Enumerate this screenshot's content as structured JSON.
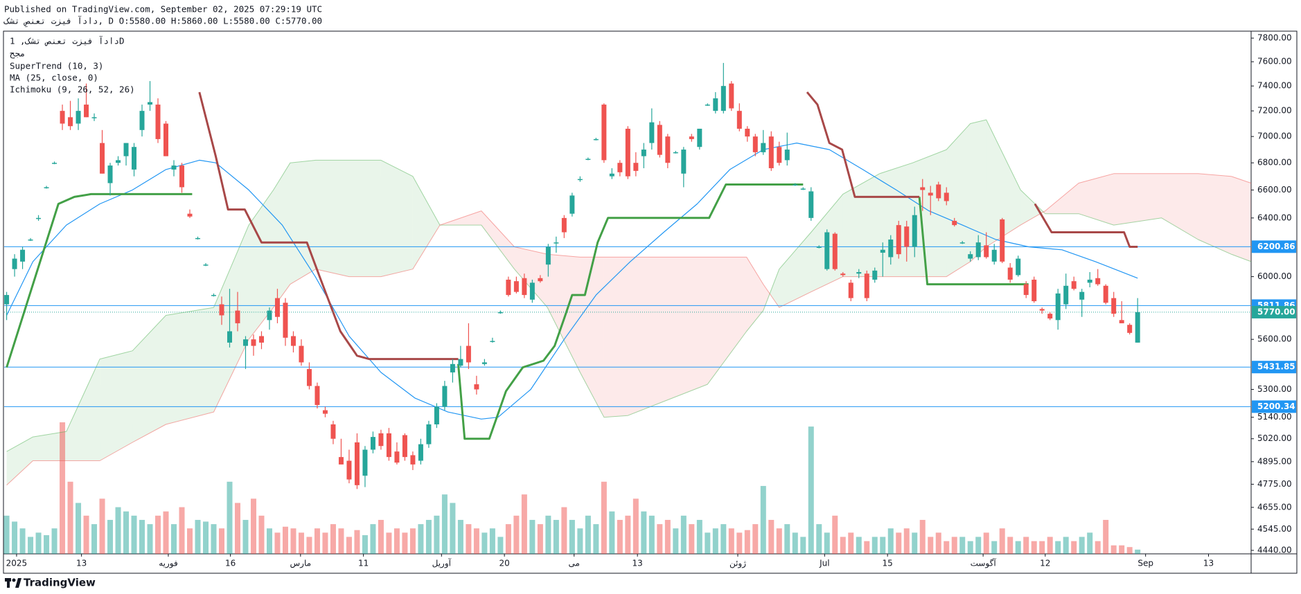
{
  "chart_data": {
    "type": "candlestick",
    "published": "Published on TradingView.com, September 02, 2025 07:29:19 UTC",
    "symbol_info": "دادآ فیزت تعنصِ تشک, D O:5580.00 H:5860.00 L:5580.00 C:5770.00",
    "legend": [
      "دادآ فیزت تعنص تشک, 1D",
      "مجح",
      "SuperTrend (10, 3)",
      "MA (25, close, 0)",
      "Ichimoku (9, 26, 52, 26)"
    ],
    "footer_logo": "TradingView",
    "log_scale": true,
    "ylim": [
      4423,
      7860
    ],
    "yticks": [
      {
        "value": 7800,
        "label": "7800.00"
      },
      {
        "value": 7600,
        "label": "7600.00"
      },
      {
        "value": 7400,
        "label": "7400.00"
      },
      {
        "value": 7200,
        "label": "7200.00"
      },
      {
        "value": 7000,
        "label": "7000.00"
      },
      {
        "value": 6800,
        "label": "6800.00"
      },
      {
        "value": 6600,
        "label": "6600.00"
      },
      {
        "value": 6400,
        "label": "6400.00"
      },
      {
        "value": 6000,
        "label": "6000.00"
      },
      {
        "value": 5600,
        "label": "5600.00"
      },
      {
        "value": 5300,
        "label": "5300.00"
      },
      {
        "value": 5140,
        "label": "5140.00"
      },
      {
        "value": 5020,
        "label": "5020.00"
      },
      {
        "value": 4895,
        "label": "4895.00"
      },
      {
        "value": 4775,
        "label": "4775.00"
      },
      {
        "value": 4655,
        "label": "4655.00"
      },
      {
        "value": 4545,
        "label": "4545.00"
      },
      {
        "value": 4440,
        "label": "4440.00"
      }
    ],
    "xlim": [
      -0.31,
      156.25
    ],
    "xticks": [
      {
        "value": 1.25,
        "label": "2025"
      },
      {
        "value": 9.4,
        "label": "13"
      },
      {
        "value": 20.3,
        "label": "فوریه"
      },
      {
        "value": 28.1,
        "label": "16"
      },
      {
        "value": 36.9,
        "label": "مارس"
      },
      {
        "value": 44.8,
        "label": "11"
      },
      {
        "value": 54.6,
        "label": "آوریل"
      },
      {
        "value": 62.5,
        "label": "20"
      },
      {
        "value": 71.25,
        "label": "می"
      },
      {
        "value": 79.2,
        "label": "13"
      },
      {
        "value": 91.8,
        "label": "ژوئن"
      },
      {
        "value": 102.7,
        "label": "Jul"
      },
      {
        "value": 110.6,
        "label": "15"
      },
      {
        "value": 122.6,
        "label": "آگوست"
      },
      {
        "value": 130.4,
        "label": "12"
      },
      {
        "value": 143,
        "label": "Sep"
      },
      {
        "value": 150.9,
        "label": "13"
      }
    ],
    "up_color": "#26a69a",
    "down_color": "#ef5350",
    "ohlc": [
      [
        5820,
        5900,
        5720,
        5880
      ],
      [
        6050,
        6150,
        6000,
        6120
      ],
      [
        6100,
        6200,
        6050,
        6180
      ],
      [
        6250,
        6260,
        6240,
        6250
      ],
      [
        6400,
        6420,
        6380,
        6400
      ],
      [
        6620,
        6630,
        6610,
        6620
      ],
      [
        6800,
        6810,
        6790,
        6800
      ],
      [
        7200,
        7250,
        7050,
        7100
      ],
      [
        7150,
        7280,
        7050,
        7080
      ],
      [
        7100,
        7300,
        7050,
        7200
      ],
      [
        7250,
        7420,
        7150,
        7150
      ],
      [
        7150,
        7180,
        7120,
        7150
      ],
      [
        6950,
        7050,
        6720,
        6720
      ],
      [
        6650,
        6800,
        6560,
        6780
      ],
      [
        6800,
        6850,
        6780,
        6820
      ],
      [
        6850,
        6950,
        6780,
        6950
      ],
      [
        6750,
        6950,
        6700,
        6920
      ],
      [
        7050,
        7250,
        7000,
        7200
      ],
      [
        7250,
        7440,
        7200,
        7270
      ],
      [
        7250,
        7300,
        6950,
        6980
      ],
      [
        7100,
        7120,
        6850,
        6850
      ],
      [
        6750,
        6820,
        6700,
        6780
      ],
      [
        6780,
        6800,
        6580,
        6620
      ],
      [
        6430,
        6460,
        6400,
        6410
      ],
      [
        6260,
        6270,
        6250,
        6260
      ],
      [
        6080,
        6090,
        6070,
        6080
      ],
      [
        5880,
        5890,
        5870,
        5880
      ],
      [
        5820,
        5870,
        5690,
        5750
      ],
      [
        5580,
        5920,
        5550,
        5650
      ],
      [
        5780,
        5900,
        5650,
        5700
      ],
      [
        5560,
        5620,
        5420,
        5600
      ],
      [
        5600,
        5630,
        5500,
        5560
      ],
      [
        5620,
        5650,
        5540,
        5580
      ],
      [
        5720,
        5800,
        5660,
        5780
      ],
      [
        5860,
        5920,
        5700,
        5740
      ],
      [
        5830,
        5860,
        5560,
        5610
      ],
      [
        5620,
        5650,
        5520,
        5560
      ],
      [
        5560,
        5600,
        5440,
        5460
      ],
      [
        5420,
        5460,
        5300,
        5320
      ],
      [
        5320,
        5340,
        5190,
        5210
      ],
      [
        5180,
        5200,
        5140,
        5160
      ],
      [
        5100,
        5120,
        4990,
        5020
      ],
      [
        4920,
        5020,
        4880,
        4880
      ],
      [
        4900,
        4960,
        4780,
        4800
      ],
      [
        5000,
        5050,
        4750,
        4770
      ],
      [
        4820,
        4980,
        4760,
        4960
      ],
      [
        4960,
        5060,
        4940,
        5030
      ],
      [
        5050,
        5070,
        4960,
        4980
      ],
      [
        5050,
        5080,
        4900,
        4920
      ],
      [
        4950,
        5000,
        4880,
        4890
      ],
      [
        5040,
        5050,
        4900,
        4920
      ],
      [
        4930,
        4950,
        4850,
        4880
      ],
      [
        4900,
        5020,
        4880,
        4990
      ],
      [
        4990,
        5120,
        4970,
        5100
      ],
      [
        5100,
        5220,
        5080,
        5200
      ],
      [
        5200,
        5350,
        5180,
        5320
      ],
      [
        5400,
        5480,
        5340,
        5450
      ],
      [
        5440,
        5560,
        5430,
        5480
      ],
      [
        5560,
        5700,
        5420,
        5460
      ],
      [
        5330,
        5380,
        5270,
        5300
      ],
      [
        5450,
        5480,
        5440,
        5460
      ],
      [
        5590,
        5610,
        5580,
        5590
      ],
      [
        5770,
        5780,
        5760,
        5770
      ],
      [
        5980,
        6000,
        5870,
        5880
      ],
      [
        5970,
        6000,
        5890,
        5900
      ],
      [
        5990,
        6020,
        5860,
        5880
      ],
      [
        5850,
        5980,
        5830,
        5960
      ],
      [
        5990,
        6010,
        5960,
        5970
      ],
      [
        6080,
        6220,
        6000,
        6200
      ],
      [
        6230,
        6270,
        6160,
        6230
      ],
      [
        6400,
        6420,
        6260,
        6300
      ],
      [
        6430,
        6580,
        6410,
        6560
      ],
      [
        6680,
        6700,
        6660,
        6680
      ],
      [
        6830,
        6840,
        6820,
        6830
      ],
      [
        6980,
        6990,
        6970,
        6980
      ],
      [
        7250,
        7260,
        6800,
        6820
      ],
      [
        6700,
        6760,
        6680,
        6720
      ],
      [
        6800,
        6820,
        6700,
        6730
      ],
      [
        7060,
        7080,
        6680,
        6700
      ],
      [
        6800,
        6880,
        6700,
        6740
      ],
      [
        6850,
        6950,
        6760,
        6900
      ],
      [
        6950,
        7220,
        6900,
        7110
      ],
      [
        7090,
        7120,
        6840,
        6860
      ],
      [
        7000,
        7020,
        6760,
        6800
      ],
      [
        6880,
        6890,
        6870,
        6880
      ],
      [
        6720,
        6920,
        6620,
        6900
      ],
      [
        7000,
        7020,
        6960,
        6980
      ],
      [
        6920,
        7060,
        6900,
        7060
      ],
      [
        7250,
        7260,
        7240,
        7250
      ],
      [
        7200,
        7350,
        7180,
        7300
      ],
      [
        7200,
        7590,
        7180,
        7400
      ],
      [
        7420,
        7440,
        7200,
        7220
      ],
      [
        7200,
        7260,
        7040,
        7060
      ],
      [
        7060,
        7080,
        6960,
        7000
      ],
      [
        7000,
        7020,
        6850,
        6880
      ],
      [
        6880,
        7050,
        6860,
        6950
      ],
      [
        7000,
        7040,
        6740,
        6760
      ],
      [
        6920,
        6960,
        6780,
        6800
      ],
      [
        6820,
        7030,
        6780,
        6900
      ],
      [
        6640,
        6650,
        6630,
        6640
      ],
      [
        6610,
        6620,
        6600,
        6610
      ],
      [
        6400,
        6620,
        6380,
        6590
      ],
      [
        6200,
        6210,
        6190,
        6200
      ],
      [
        6050,
        6320,
        6040,
        6300
      ],
      [
        6290,
        6300,
        6040,
        6050
      ],
      [
        6020,
        6030,
        6000,
        6010
      ],
      [
        5960,
        5980,
        5840,
        5860
      ],
      [
        6020,
        6050,
        5990,
        6030
      ],
      [
        6020,
        6040,
        5840,
        5860
      ],
      [
        5980,
        6060,
        5960,
        6040
      ],
      [
        6160,
        6230,
        6000,
        6180
      ],
      [
        6130,
        6280,
        6080,
        6250
      ],
      [
        6350,
        6380,
        6120,
        6150
      ],
      [
        6340,
        6380,
        6100,
        6200
      ],
      [
        6200,
        6480,
        6130,
        6420
      ],
      [
        6620,
        6680,
        6450,
        6600
      ],
      [
        6580,
        6630,
        6420,
        6560
      ],
      [
        6640,
        6660,
        6520,
        6540
      ],
      [
        6580,
        6620,
        6490,
        6520
      ],
      [
        6380,
        6400,
        6340,
        6350
      ],
      [
        6230,
        6240,
        6220,
        6230
      ],
      [
        6120,
        6170,
        6100,
        6150
      ],
      [
        6130,
        6280,
        6110,
        6230
      ],
      [
        6210,
        6300,
        6120,
        6130
      ],
      [
        6100,
        6220,
        6080,
        6180
      ],
      [
        6390,
        6400,
        6090,
        6100
      ],
      [
        6060,
        6090,
        5960,
        5980
      ],
      [
        6010,
        6140,
        6000,
        6120
      ],
      [
        5950,
        5970,
        5860,
        5880
      ],
      [
        5980,
        6000,
        5830,
        5840
      ],
      [
        5790,
        5800,
        5760,
        5780
      ],
      [
        5760,
        5770,
        5720,
        5730
      ],
      [
        5720,
        5920,
        5660,
        5890
      ],
      [
        5820,
        6020,
        5790,
        5940
      ],
      [
        5970,
        6000,
        5910,
        5920
      ],
      [
        5850,
        5920,
        5740,
        5900
      ],
      [
        5960,
        6030,
        5930,
        5980
      ],
      [
        5990,
        6050,
        5940,
        5950
      ],
      [
        5940,
        5950,
        5820,
        5830
      ],
      [
        5860,
        5900,
        5740,
        5760
      ],
      [
        5720,
        5840,
        5700,
        5700
      ],
      [
        5690,
        5700,
        5630,
        5640
      ],
      [
        5580,
        5860,
        5580,
        5770
      ]
    ],
    "volume": [
      45,
      38,
      30,
      20,
      25,
      22,
      30,
      155,
      85,
      60,
      45,
      35,
      65,
      40,
      55,
      50,
      45,
      40,
      35,
      45,
      50,
      35,
      55,
      30,
      40,
      38,
      35,
      30,
      85,
      60,
      40,
      65,
      45,
      30,
      25,
      32,
      30,
      25,
      20,
      30,
      25,
      35,
      30,
      20,
      28,
      22,
      35,
      40,
      25,
      30,
      25,
      30,
      35,
      40,
      45,
      70,
      60,
      40,
      35,
      30,
      25,
      30,
      20,
      35,
      45,
      70,
      40,
      35,
      45,
      40,
      55,
      40,
      30,
      45,
      35,
      85,
      50,
      40,
      45,
      65,
      50,
      45,
      35,
      40,
      30,
      45,
      35,
      40,
      25,
      30,
      35,
      30,
      25,
      28,
      35,
      80,
      40,
      30,
      35,
      25,
      20,
      150,
      35,
      25,
      45,
      20,
      25,
      20,
      15,
      20,
      20,
      30,
      25,
      30,
      25,
      40,
      20,
      25,
      15,
      20,
      20,
      15,
      20,
      25,
      15,
      30,
      20,
      15,
      20,
      15,
      15,
      20,
      15,
      20,
      15,
      20,
      25,
      15,
      40,
      10,
      10,
      8,
      5
    ],
    "ma": {
      "color": "#2196f3",
      "x": [
        0,
        3.3,
        7.5,
        11.7,
        15.8,
        20,
        24.2,
        26.25,
        30.4,
        34.6,
        38.75,
        43,
        47,
        51.25,
        55.4,
        59.6,
        61.7,
        65.8,
        70,
        74,
        78.3,
        82.5,
        86.7,
        90.8,
        95,
        99.2,
        103.3,
        107.5,
        111.7,
        115.8,
        120,
        124.2,
        128.3,
        132.5,
        136.7,
        142
      ],
      "values": [
        5750,
        6100,
        6350,
        6500,
        6600,
        6750,
        6820,
        6800,
        6600,
        6350,
        6000,
        5620,
        5400,
        5250,
        5170,
        5130,
        5140,
        5300,
        5600,
        5880,
        6100,
        6300,
        6500,
        6750,
        6900,
        6950,
        6900,
        6750,
        6600,
        6450,
        6350,
        6250,
        6200,
        6180,
        6100,
        5990
      ]
    },
    "supertrend": [
      {
        "color": "#43a047",
        "x": [
          0,
          6.5,
          8.5,
          10.6,
          23.3,
          23.3,
          56.7,
          57.5,
          60.6,
          62.7,
          64.8,
          67.4,
          68.8,
          70,
          71,
          72.6,
          74.2,
          75.5,
          88.2,
          90.3,
          100,
          100,
          114.6,
          115.6,
          128.3
        ],
        "values": [
          5430,
          6500,
          6550,
          6570,
          6570,
          null,
          5450,
          5020,
          5020,
          5290,
          5430,
          5470,
          5560,
          5730,
          5880,
          5880,
          6230,
          6400,
          6400,
          6640,
          6640,
          null,
          6550,
          5950,
          5950
        ]
      },
      {
        "color": "#a84848",
        "x": [
          24.2,
          26.25,
          27.8,
          29.9,
          32,
          37.7,
          39.3,
          41.9,
          44,
          45.5,
          56.7,
          56.7,
          100.5,
          101.8,
          103.3,
          104.9,
          106.5,
          114.6,
          114.6,
          129.1,
          131.2,
          140.3,
          141,
          142
        ],
        "values": [
          7350,
          6850,
          6460,
          6460,
          6230,
          6230,
          6000,
          5650,
          5500,
          5480,
          5480,
          null,
          7350,
          7250,
          6950,
          6900,
          6550,
          6550,
          null,
          6500,
          6300,
          6300,
          6200,
          6200
        ]
      }
    ],
    "ichimoku": {
      "span_a_color": "#4caf50",
      "span_b_color": "#ef5350",
      "x": [
        0,
        3.3,
        7.5,
        11.7,
        15.8,
        20,
        26,
        30.4,
        33.5,
        35.6,
        38.8,
        43,
        47,
        51,
        54.4,
        59.6,
        63.75,
        67.9,
        72,
        75,
        78,
        82.5,
        88,
        92.9,
        95,
        97,
        101,
        105,
        109.6,
        113.75,
        118,
        121,
        123,
        127.3,
        130.4,
        134.6,
        139,
        145,
        149.6,
        153.75,
        156.25
      ],
      "span_a": [
        4950,
        5030,
        5060,
        5480,
        5530,
        5750,
        5800,
        6350,
        6600,
        6800,
        6820,
        6820,
        6820,
        6700,
        6350,
        6350,
        6050,
        5800,
        5400,
        5140,
        5150,
        5230,
        5330,
        5650,
        5780,
        6050,
        6300,
        6570,
        6720,
        6800,
        6900,
        7100,
        7130,
        6600,
        6430,
        6430,
        6350,
        6400,
        6250,
        6150,
        6100
      ],
      "span_b": [
        4770,
        4900,
        4900,
        4900,
        5000,
        5100,
        5170,
        5600,
        5800,
        5950,
        6050,
        6000,
        6000,
        6050,
        6350,
        6450,
        6200,
        6150,
        6130,
        6130,
        6130,
        6130,
        6130,
        6130,
        5950,
        5800,
        5900,
        6000,
        6000,
        6000,
        6000,
        6100,
        6200,
        6350,
        6450,
        6650,
        6720,
        6720,
        6720,
        6700,
        6650
      ]
    },
    "price_lines": [
      6200.86,
      5811.86,
      5431.85,
      5200.34
    ],
    "price_line_color": "#2196f3",
    "last_price": {
      "value": 5770,
      "label": "5770.00"
    }
  }
}
